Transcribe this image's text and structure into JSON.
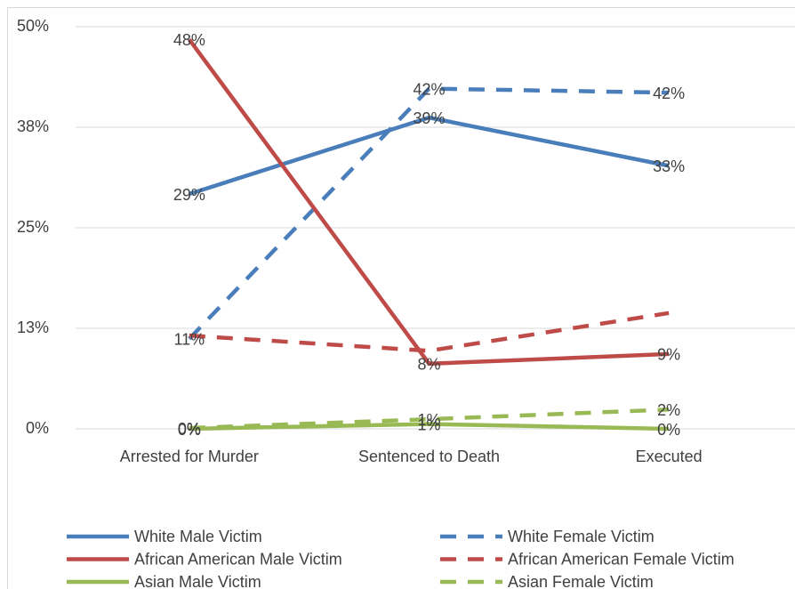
{
  "chart_data": {
    "type": "line",
    "categories": [
      "Arrested for Murder",
      "Sentenced to Death",
      "Executed"
    ],
    "ylim": [
      0,
      50
    ],
    "yticks": [
      {
        "value": 0,
        "label": "0%"
      },
      {
        "value": 12.5,
        "label": "13%"
      },
      {
        "value": 25,
        "label": "25%"
      },
      {
        "value": 37.5,
        "label": "38%"
      },
      {
        "value": 50,
        "label": "50%"
      }
    ],
    "grid": true,
    "legend": "bottom",
    "series": [
      {
        "name": "White Male Victim",
        "color": "#4a7ebb",
        "dashed": false,
        "values": [
          29.2,
          38.7,
          32.7
        ],
        "value_labels": [
          "29%",
          "39%",
          "33%"
        ]
      },
      {
        "name": "White Female Victim",
        "color": "#4a7ebb",
        "dashed": true,
        "values": [
          11.2,
          42.3,
          41.8
        ],
        "value_labels": [
          "11%",
          "42%",
          "42%"
        ]
      },
      {
        "name": "African American Male Victim",
        "color": "#be4b48",
        "dashed": false,
        "values": [
          48.4,
          8.1,
          9.3
        ],
        "value_labels": [
          "48%",
          "8%",
          "9%"
        ]
      },
      {
        "name": "African American Female Victim",
        "color": "#be4b48",
        "dashed": true,
        "values": [
          11.6,
          9.7,
          14.4
        ]
      },
      {
        "name": "Asian Male Victim",
        "color": "#98b954",
        "dashed": false,
        "values": [
          0,
          0.6,
          0
        ],
        "value_labels": [
          "0%",
          "1%",
          "0%"
        ]
      },
      {
        "name": "Asian Female Victim",
        "color": "#98b954",
        "dashed": true,
        "values": [
          0.1,
          1.2,
          2.4
        ],
        "value_labels": [
          "0%",
          "1%",
          "2%"
        ]
      }
    ]
  }
}
